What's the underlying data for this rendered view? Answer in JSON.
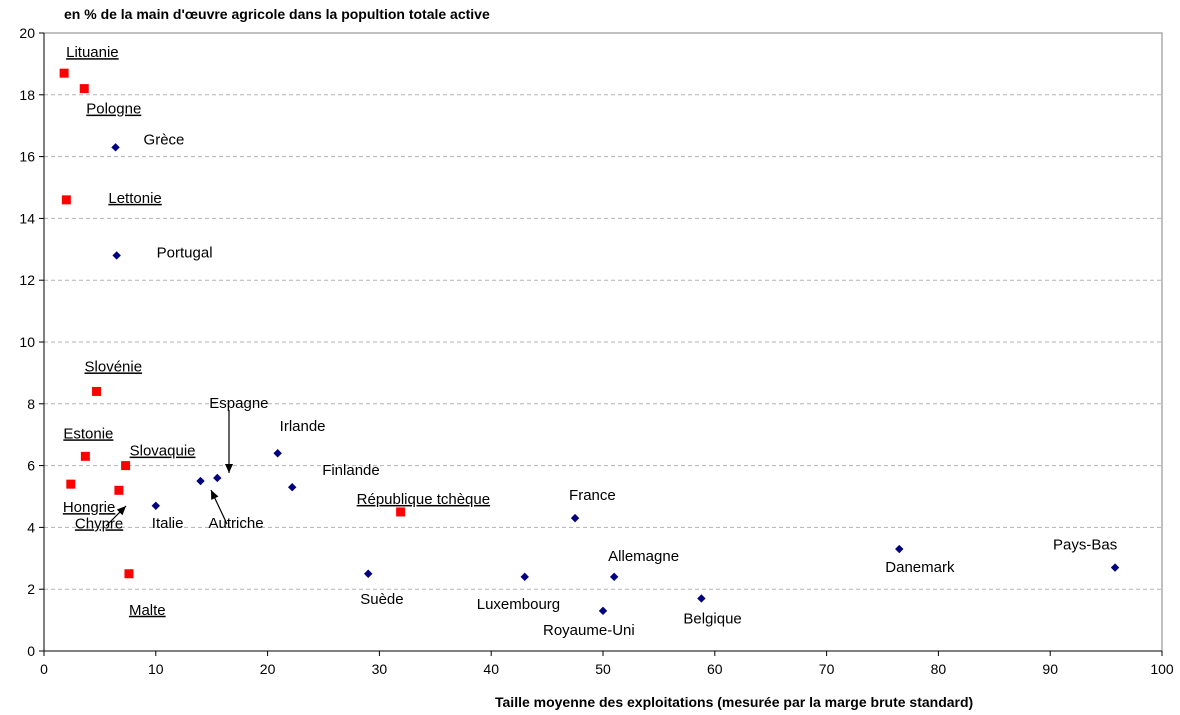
{
  "chart_data": {
    "type": "scatter",
    "title": "",
    "ylabel": "en %  de la main d'œuvre agricole dans la popultion totale active",
    "xlabel": "Taille moyenne des exploitations (mesurée par la marge brute standard)",
    "xlim": [
      0,
      100
    ],
    "ylim": [
      0,
      20
    ],
    "x_ticks": [
      "0",
      "10",
      "20",
      "30",
      "40",
      "50",
      "60",
      "70",
      "80",
      "90",
      "100"
    ],
    "y_ticks": [
      "0",
      "2",
      "4",
      "6",
      "8",
      "10",
      "12",
      "14",
      "16",
      "18",
      "20"
    ],
    "grid": "horizontal dashed",
    "legend": "none",
    "series": [
      {
        "marker": "diamond",
        "color": "#000080",
        "points": [
          {
            "label": "Grèce",
            "x": 6.4,
            "y": 16.3
          },
          {
            "label": "Portugal",
            "x": 6.5,
            "y": 12.8
          },
          {
            "label": "Italie",
            "x": 10.0,
            "y": 4.7
          },
          {
            "label": "Espagne",
            "x": 15.5,
            "y": 5.6
          },
          {
            "label": "Autriche",
            "x": 14.0,
            "y": 5.5
          },
          {
            "label": "Irlande",
            "x": 20.9,
            "y": 6.4
          },
          {
            "label": "Finlande",
            "x": 22.2,
            "y": 5.3
          },
          {
            "label": "Suède",
            "x": 29.0,
            "y": 2.5
          },
          {
            "label": "Luxembourg",
            "x": 43.0,
            "y": 2.4
          },
          {
            "label": "France",
            "x": 47.5,
            "y": 4.3
          },
          {
            "label": "Royaume-Uni",
            "x": 50.0,
            "y": 1.3
          },
          {
            "label": "Allemagne",
            "x": 51.0,
            "y": 2.4
          },
          {
            "label": "Belgique",
            "x": 58.8,
            "y": 1.7
          },
          {
            "label": "Danemark",
            "x": 76.5,
            "y": 3.3
          },
          {
            "label": "Pays-Bas",
            "x": 95.8,
            "y": 2.7
          }
        ]
      },
      {
        "marker": "square",
        "color": "#ff0000",
        "underlined_labels": true,
        "points": [
          {
            "label": "Lituanie",
            "x": 1.8,
            "y": 18.7
          },
          {
            "label": "Pologne",
            "x": 3.6,
            "y": 18.2
          },
          {
            "label": "Lettonie",
            "x": 2.0,
            "y": 14.6
          },
          {
            "label": "Slovénie",
            "x": 4.7,
            "y": 8.4
          },
          {
            "label": "Estonie",
            "x": 3.7,
            "y": 6.3
          },
          {
            "label": "Slovaquie",
            "x": 7.3,
            "y": 6.0
          },
          {
            "label": "Hongrie",
            "x": 2.4,
            "y": 5.4
          },
          {
            "label": "Chypre",
            "x": 6.7,
            "y": 5.2
          },
          {
            "label": "Malte",
            "x": 7.6,
            "y": 2.5
          },
          {
            "label": "République tchèque",
            "x": 31.9,
            "y": 4.5
          }
        ]
      }
    ]
  }
}
